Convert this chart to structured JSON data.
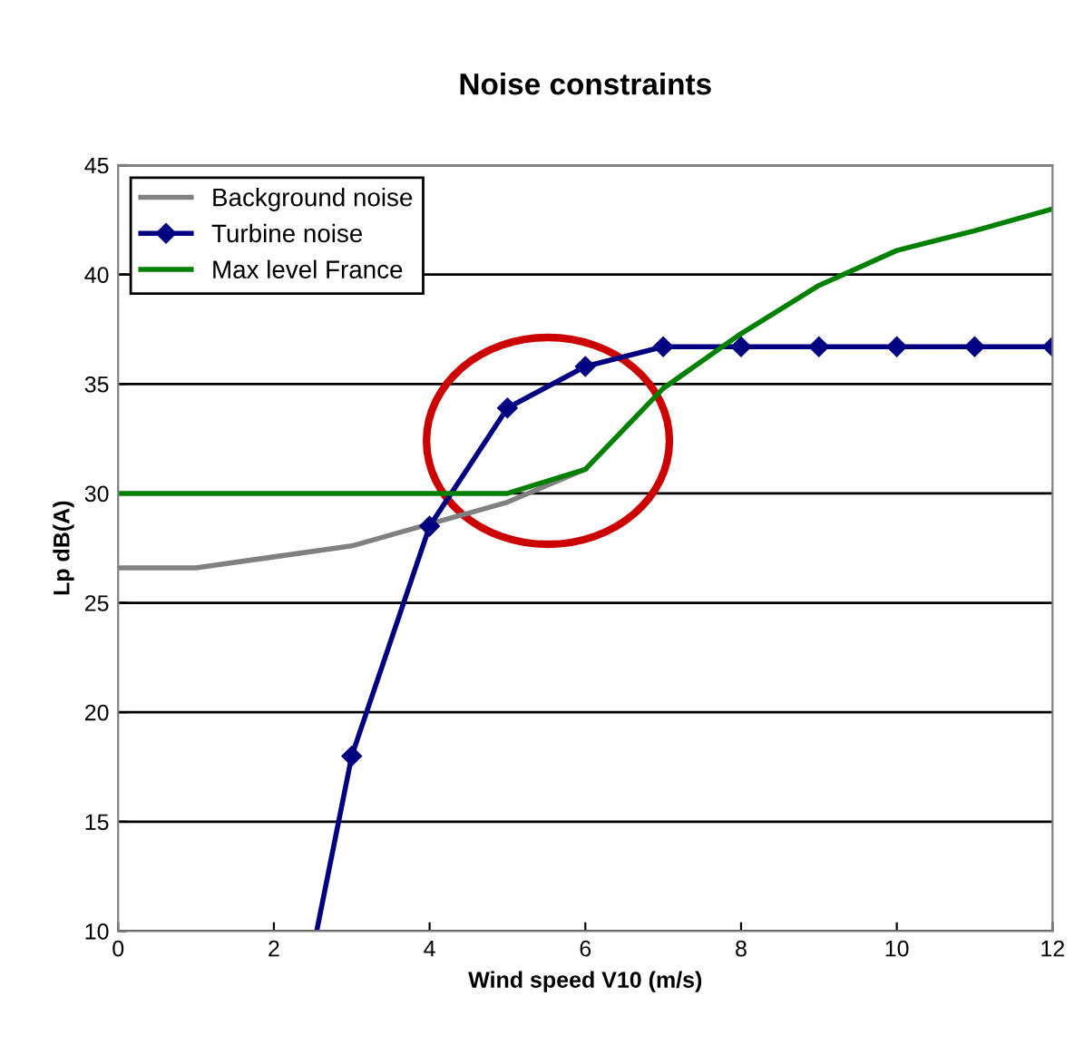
{
  "chart_data": {
    "type": "line",
    "title": "Noise constraints",
    "xlabel": "Wind speed V10 (m/s)",
    "ylabel": "Lp dB(A)",
    "x": [
      0,
      1,
      2,
      3,
      4,
      5,
      6,
      7,
      8,
      9,
      10,
      11,
      12
    ],
    "series": [
      {
        "name": "Background noise",
        "color": "#808080",
        "marker": "none",
        "values": [
          26.6,
          26.6,
          27.1,
          27.6,
          28.6,
          29.6,
          31.1,
          null,
          null,
          null,
          null,
          null,
          null
        ]
      },
      {
        "name": "Turbine noise",
        "color": "#000080",
        "marker": "diamond",
        "x": [
          2.55,
          3,
          4,
          5,
          6,
          7,
          8,
          9,
          10,
          11,
          12
        ],
        "values": [
          10,
          18,
          28.5,
          33.9,
          35.8,
          36.7,
          36.7,
          36.7,
          36.7,
          36.7,
          36.7
        ]
      },
      {
        "name": "Max level France",
        "color": "#008000",
        "marker": "none",
        "values": [
          30,
          30,
          30,
          30,
          30,
          30,
          31.1,
          34.8,
          37.3,
          39.5,
          41.1,
          42,
          43
        ]
      }
    ],
    "xlim": [
      0,
      12
    ],
    "xticks": [
      0,
      2,
      4,
      6,
      8,
      10,
      12
    ],
    "ylim": [
      10,
      45
    ],
    "yticks": [
      10,
      15,
      20,
      25,
      30,
      35,
      40,
      45
    ],
    "grid": "y",
    "legend": "top left",
    "line_style": "solid"
  }
}
